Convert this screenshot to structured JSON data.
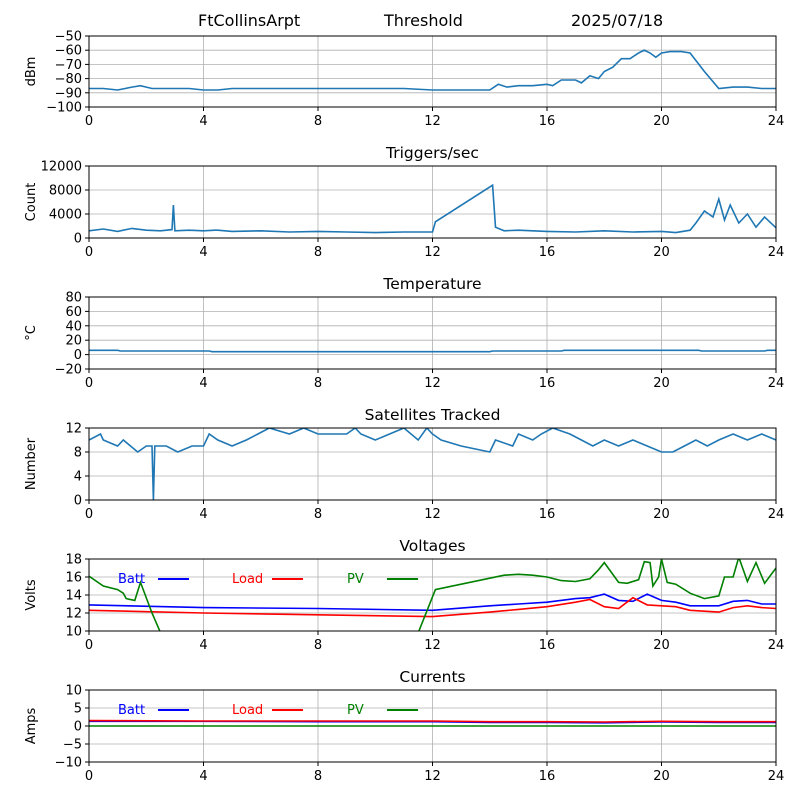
{
  "header": {
    "station": "FtCollinsArpt",
    "mode": "Threshold",
    "date": "2025/07/18"
  },
  "colors": {
    "series_default": "#1f77b4",
    "batt": "#0000ff",
    "load": "#ff0000",
    "pv": "#008000",
    "grid": "#b0b0b0"
  },
  "chart_data": [
    {
      "type": "line",
      "title": "",
      "ylabel": "dBm",
      "xlim": [
        0,
        24
      ],
      "ylim": [
        -100,
        -50
      ],
      "xticks": [
        0,
        4,
        8,
        12,
        16,
        20,
        24
      ],
      "yticks": [
        -100,
        -90,
        -80,
        -70,
        -60,
        -50
      ],
      "grid": true,
      "series": [
        {
          "color": "#1f77b4",
          "x": [
            0,
            0.5,
            1.0,
            1.5,
            1.8,
            2.0,
            2.2,
            2.5,
            3.0,
            3.5,
            4.0,
            4.5,
            5.0,
            6.0,
            7.0,
            8.0,
            9.0,
            10.0,
            11.0,
            12.0,
            13.0,
            14.0,
            14.3,
            14.6,
            15.0,
            15.5,
            16.0,
            16.2,
            16.5,
            17.0,
            17.2,
            17.5,
            17.8,
            18.0,
            18.3,
            18.6,
            18.9,
            19.2,
            19.4,
            19.6,
            19.8,
            20.0,
            20.3,
            20.7,
            21.0,
            21.5,
            22.0,
            22.5,
            23.0,
            23.5,
            24.0
          ],
          "y": [
            -87,
            -87,
            -88,
            -86,
            -85,
            -86,
            -87,
            -87,
            -87,
            -87,
            -88,
            -88,
            -87,
            -87,
            -87,
            -87,
            -87,
            -87,
            -87,
            -88,
            -88,
            -88,
            -84,
            -86,
            -85,
            -85,
            -84,
            -85,
            -81,
            -81,
            -83,
            -78,
            -80,
            -75,
            -72,
            -66,
            -66,
            -62,
            -60,
            -62,
            -65,
            -62,
            -61,
            -61,
            -62,
            -75,
            -87,
            -86,
            -86,
            -87,
            -87
          ]
        }
      ]
    },
    {
      "type": "line",
      "title": "Triggers/sec",
      "ylabel": "Count",
      "xlim": [
        0,
        24
      ],
      "ylim": [
        0,
        12000
      ],
      "xticks": [
        0,
        4,
        8,
        12,
        16,
        20,
        24
      ],
      "yticks": [
        0,
        4000,
        8000,
        12000
      ],
      "grid": true,
      "series": [
        {
          "color": "#1f77b4",
          "x": [
            0,
            0.5,
            1.0,
            1.5,
            2.0,
            2.5,
            2.9,
            2.95,
            3.0,
            3.5,
            4.0,
            4.4,
            4.5,
            5.0,
            6.0,
            7.0,
            8.0,
            9.0,
            10.0,
            11.0,
            12.0,
            12.1,
            14.1,
            14.2,
            14.5,
            15.0,
            15.5,
            16.0,
            17.0,
            18.0,
            19.0,
            20.0,
            20.5,
            21.0,
            21.2,
            21.5,
            21.8,
            22.0,
            22.2,
            22.4,
            22.7,
            23.0,
            23.3,
            23.6,
            24.0
          ],
          "y": [
            1200,
            1500,
            1100,
            1600,
            1300,
            1200,
            1400,
            5500,
            1200,
            1300,
            1200,
            1300,
            1300,
            1100,
            1200,
            1000,
            1100,
            1000,
            900,
            1000,
            1000,
            2700,
            8800,
            1800,
            1200,
            1300,
            1200,
            1100,
            1000,
            1200,
            1000,
            1100,
            900,
            1300,
            2500,
            4500,
            3500,
            6500,
            3000,
            5500,
            2500,
            4000,
            1800,
            3500,
            1700
          ]
        }
      ]
    },
    {
      "type": "line",
      "title": "Temperature",
      "ylabel": "°C",
      "xlim": [
        0,
        24
      ],
      "ylim": [
        -20,
        80
      ],
      "xticks": [
        0,
        4,
        8,
        12,
        16,
        20,
        24
      ],
      "yticks": [
        -20,
        0,
        20,
        40,
        60,
        80
      ],
      "grid": true,
      "series": [
        {
          "color": "#1f77b4",
          "x": [
            0,
            1.0,
            1.1,
            4.2,
            4.3,
            14.0,
            14.1,
            16.5,
            16.6,
            21.3,
            21.4,
            23.6,
            23.7,
            24.0
          ],
          "y": [
            6,
            6,
            5,
            5,
            4,
            4,
            5,
            5,
            6,
            6,
            5,
            5,
            6,
            6
          ]
        }
      ]
    },
    {
      "type": "line",
      "title": "Satellites Tracked",
      "ylabel": "Number",
      "xlim": [
        0,
        24
      ],
      "ylim": [
        0,
        12
      ],
      "xticks": [
        0,
        4,
        8,
        12,
        16,
        20,
        24
      ],
      "yticks": [
        0,
        4,
        8,
        12
      ],
      "grid": true,
      "series": [
        {
          "color": "#1f77b4",
          "x": [
            0,
            0.4,
            0.5,
            1.0,
            1.2,
            1.7,
            2.0,
            2.2,
            2.25,
            2.3,
            2.7,
            3.1,
            3.6,
            4.0,
            4.2,
            4.5,
            5.0,
            5.5,
            5.9,
            6.3,
            7.0,
            7.5,
            8.0,
            8.5,
            9.0,
            9.3,
            9.5,
            10.0,
            10.5,
            11.0,
            11.5,
            11.8,
            12.0,
            12.3,
            13.0,
            14.0,
            14.2,
            14.8,
            15.0,
            15.5,
            15.8,
            16.2,
            16.8,
            17.2,
            17.6,
            18.0,
            18.5,
            19.0,
            19.5,
            20.0,
            20.4,
            20.8,
            21.2,
            21.6,
            22.0,
            22.5,
            23.0,
            23.5,
            24.0
          ],
          "y": [
            10,
            11,
            10,
            9,
            10,
            8,
            9,
            9,
            0,
            9,
            9,
            8,
            9,
            9,
            11,
            10,
            9,
            10,
            11,
            12,
            11,
            12,
            11,
            11,
            11,
            12,
            11,
            10,
            11,
            12,
            10,
            12,
            11,
            10,
            9,
            8,
            10,
            9,
            11,
            10,
            11,
            12,
            11,
            10,
            9,
            10,
            9,
            10,
            9,
            8,
            8,
            9,
            10,
            9,
            10,
            11,
            10,
            11,
            10
          ]
        }
      ]
    },
    {
      "type": "line",
      "title": "Voltages",
      "ylabel": "Volts",
      "xlim": [
        0,
        24
      ],
      "ylim": [
        10,
        18
      ],
      "xticks": [
        0,
        4,
        8,
        12,
        16,
        20,
        24
      ],
      "yticks": [
        10,
        12,
        14,
        16,
        18
      ],
      "grid": true,
      "legend_position": "top-left",
      "series": [
        {
          "name": "Batt",
          "color": "#0000ff",
          "x": [
            0,
            4,
            8,
            12,
            14,
            15,
            16,
            17,
            17.5,
            18,
            18.5,
            19,
            19.5,
            20,
            20.5,
            21,
            21.5,
            22,
            22.5,
            23,
            23.5,
            24
          ],
          "y": [
            12.9,
            12.6,
            12.5,
            12.3,
            12.8,
            13.0,
            13.2,
            13.6,
            13.7,
            14.1,
            13.4,
            13.3,
            14.1,
            13.4,
            13.2,
            12.8,
            12.8,
            12.8,
            13.3,
            13.4,
            13.0,
            13.0
          ]
        },
        {
          "name": "Load",
          "color": "#ff0000",
          "x": [
            0,
            4,
            8,
            12,
            14,
            15,
            16,
            17,
            17.5,
            18,
            18.5,
            19,
            19.5,
            20,
            20.5,
            21,
            21.5,
            22,
            22.5,
            23,
            23.5,
            24
          ],
          "y": [
            12.3,
            12.0,
            11.8,
            11.6,
            12.1,
            12.4,
            12.7,
            13.2,
            13.5,
            12.7,
            12.5,
            13.7,
            12.9,
            12.8,
            12.7,
            12.3,
            12.2,
            12.1,
            12.6,
            12.8,
            12.6,
            12.5
          ],
          "labels": {
            "x": 11.9
          }
        },
        {
          "name": "PV",
          "color": "#008000",
          "x": [
            0,
            0.5,
            1.0,
            1.2,
            1.3,
            1.6,
            1.8,
            2.2,
            2.5,
            2.6,
            11.5,
            12.1,
            14.5,
            15.0,
            15.5,
            16.0,
            16.5,
            17.0,
            17.5,
            17.8,
            18.0,
            18.5,
            18.8,
            19.2,
            19.4,
            19.6,
            19.7,
            19.9,
            20.0,
            20.2,
            20.5,
            21.0,
            21.5,
            22.0,
            22.2,
            22.5,
            22.7,
            23.0,
            23.3,
            23.6,
            24.0
          ],
          "y": [
            16.1,
            15.0,
            14.6,
            14.2,
            13.6,
            13.4,
            15.4,
            12.0,
            9.8,
            9.8,
            9.8,
            14.6,
            16.2,
            16.3,
            16.2,
            16.0,
            15.6,
            15.5,
            15.8,
            16.8,
            17.6,
            15.4,
            15.3,
            15.7,
            17.7,
            17.6,
            15.0,
            16.0,
            18.0,
            15.4,
            15.2,
            14.2,
            13.6,
            13.9,
            16.0,
            16.0,
            18.2,
            15.5,
            17.6,
            15.3,
            17.0
          ]
        }
      ]
    },
    {
      "type": "line",
      "title": "Currents",
      "ylabel": "Amps",
      "xlim": [
        0,
        24
      ],
      "ylim": [
        -10,
        10
      ],
      "xticks": [
        0,
        4,
        8,
        12,
        16,
        20,
        24
      ],
      "yticks": [
        -10,
        -5,
        0,
        5,
        10
      ],
      "grid": true,
      "legend_position": "top-left",
      "series": [
        {
          "name": "Batt",
          "color": "#0000ff",
          "x": [
            0,
            4,
            8,
            12,
            14,
            16,
            18,
            20,
            22,
            24
          ],
          "y": [
            1.3,
            1.3,
            1.2,
            1.2,
            1.0,
            1.0,
            0.9,
            1.1,
            1.0,
            1.0
          ]
        },
        {
          "name": "Load",
          "color": "#ff0000",
          "x": [
            0,
            4,
            8,
            12,
            14,
            16,
            18,
            20,
            22,
            24
          ],
          "y": [
            1.5,
            1.4,
            1.4,
            1.4,
            1.2,
            1.2,
            1.1,
            1.3,
            1.2,
            1.2
          ]
        },
        {
          "name": "PV",
          "color": "#008000",
          "x": [
            0,
            24
          ],
          "y": [
            0,
            0
          ]
        }
      ]
    }
  ]
}
